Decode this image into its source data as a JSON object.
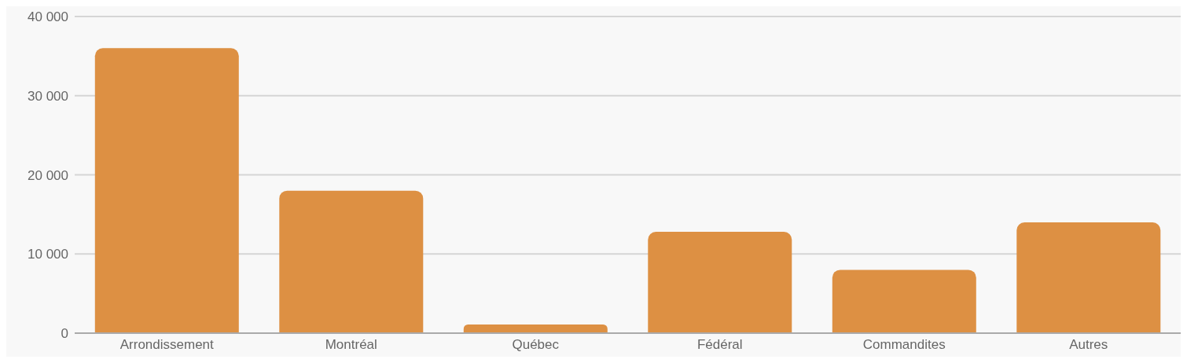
{
  "chart_data": {
    "type": "bar",
    "categories": [
      "Arrondissement",
      "Montréal",
      "Québec",
      "Fédéral",
      "Commandites",
      "Autres"
    ],
    "values": [
      36000,
      18000,
      1100,
      12800,
      8000,
      14000
    ],
    "color": "#dd9043",
    "ylim": [
      0,
      40000
    ],
    "yticks": [
      0,
      {
        "value": 10000,
        "label": "10 000"
      },
      {
        "value": 20000,
        "label": "20 000"
      },
      {
        "value": 30000,
        "label": "30 000"
      },
      {
        "value": 40000,
        "label": "40 000"
      }
    ],
    "grid": "y"
  }
}
